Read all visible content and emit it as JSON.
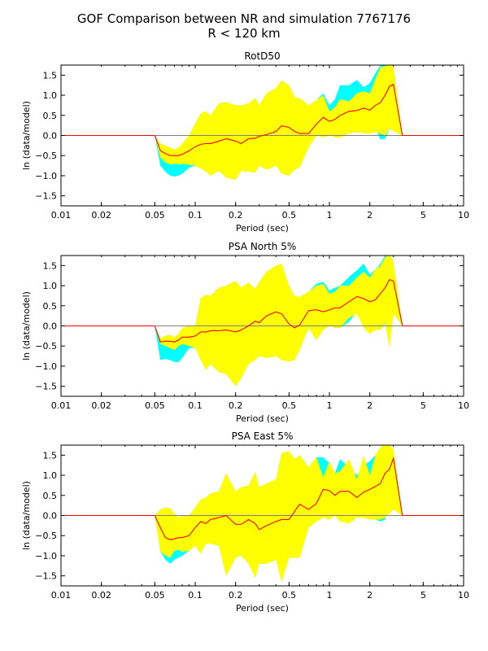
{
  "figure": {
    "title_line1": "GOF Comparison between NR and simulation 7767176",
    "title_line2": "R < 120 km"
  },
  "colors": {
    "outer_band": "#00ffff",
    "inner_band": "#ffff00",
    "mean_line": "#ff0000",
    "zero_line": "#808080"
  },
  "chart_data": [
    {
      "type": "area",
      "title": "RotD50",
      "xlabel": "Period (sec)",
      "ylabel": "ln (data/model)",
      "xscale": "log",
      "xlim": [
        0.01,
        10
      ],
      "ylim": [
        -1.75,
        1.75
      ],
      "xticks": [
        0.01,
        0.02,
        0.05,
        0.1,
        0.2,
        0.5,
        1,
        2,
        5,
        10
      ],
      "xtick_labels": [
        "0.01",
        "0.02",
        "0.05",
        "0.1",
        "0.2",
        "0.5",
        "1",
        "2",
        "5",
        "10"
      ],
      "yticks": [
        -1.5,
        -1.0,
        -0.5,
        0.0,
        0.5,
        1.0,
        1.5
      ],
      "ytick_labels": [
        "−1.5",
        "−1.0",
        "−0.5",
        "0.0",
        "0.5",
        "1.0",
        "1.5"
      ],
      "x": [
        0.05,
        0.055,
        0.06,
        0.065,
        0.07,
        0.075,
        0.08,
        0.09,
        0.1,
        0.11,
        0.12,
        0.13,
        0.15,
        0.17,
        0.2,
        0.22,
        0.25,
        0.28,
        0.3,
        0.34,
        0.4,
        0.44,
        0.5,
        0.55,
        0.6,
        0.7,
        0.8,
        0.9,
        1.0,
        1.1,
        1.2,
        1.4,
        1.6,
        1.8,
        2.0,
        2.2,
        2.4,
        2.6,
        2.8,
        3.0,
        3.5
      ],
      "mean": [
        0,
        -0.38,
        -0.45,
        -0.5,
        -0.5,
        -0.5,
        -0.47,
        -0.38,
        -0.28,
        -0.22,
        -0.2,
        -0.2,
        -0.14,
        -0.08,
        -0.14,
        -0.2,
        -0.08,
        -0.07,
        -0.02,
        0.02,
        0.1,
        0.24,
        0.2,
        0.1,
        0.05,
        0.05,
        0.28,
        0.45,
        0.35,
        0.4,
        0.5,
        0.6,
        0.62,
        0.68,
        0.63,
        0.75,
        0.82,
        1.0,
        1.22,
        1.27,
        0
      ],
      "inner_upper": [
        0,
        -0.2,
        -0.25,
        -0.3,
        -0.35,
        -0.3,
        -0.2,
        0.0,
        0.3,
        0.55,
        0.6,
        0.5,
        0.8,
        0.83,
        0.75,
        0.75,
        0.8,
        0.93,
        0.75,
        1.05,
        1.18,
        1.37,
        1.25,
        0.95,
        0.93,
        0.75,
        0.88,
        1.0,
        0.6,
        0.7,
        0.9,
        0.85,
        1.05,
        1.1,
        1.05,
        1.4,
        1.7,
        1.72,
        1.8,
        1.7,
        0
      ],
      "inner_lower": [
        0,
        -0.55,
        -0.67,
        -0.72,
        -0.7,
        -0.72,
        -0.7,
        -0.73,
        -0.75,
        -0.82,
        -0.9,
        -1.0,
        -0.88,
        -1.05,
        -1.1,
        -0.88,
        -0.9,
        -0.92,
        -0.75,
        -0.85,
        -0.75,
        -0.95,
        -1.0,
        -0.85,
        -0.8,
        -0.3,
        0.0,
        -0.05,
        0.02,
        -0.05,
        -0.05,
        0.05,
        0.08,
        0.05,
        0.05,
        0.08,
        0.05,
        0.0,
        0.18,
        0.1,
        0
      ],
      "outer_upper": [
        0,
        -0.2,
        -0.25,
        -0.3,
        -0.35,
        -0.3,
        -0.2,
        0.0,
        0.3,
        0.55,
        0.6,
        0.5,
        0.8,
        0.83,
        0.75,
        0.75,
        0.8,
        0.93,
        0.75,
        1.05,
        1.18,
        1.37,
        1.25,
        0.95,
        0.93,
        0.75,
        0.88,
        1.05,
        0.75,
        0.9,
        1.25,
        1.25,
        1.38,
        1.2,
        1.3,
        1.55,
        1.75,
        1.75,
        1.8,
        1.7,
        0
      ],
      "outer_lower": [
        0,
        -0.75,
        -0.9,
        -1.0,
        -1.02,
        -1.0,
        -0.95,
        -0.8,
        -0.75,
        -0.82,
        -0.9,
        -1.0,
        -0.88,
        -1.05,
        -1.1,
        -0.88,
        -0.9,
        -0.92,
        -0.75,
        -0.85,
        -0.75,
        -0.95,
        -1.0,
        -0.85,
        -0.8,
        -0.3,
        0.05,
        -0.05,
        0.1,
        0.18,
        0.1,
        0.2,
        0.45,
        0.28,
        0.25,
        0.2,
        -0.1,
        -0.08,
        0.18,
        0.1,
        0
      ]
    },
    {
      "type": "area",
      "title": "PSA North 5%",
      "xlabel": "Period (sec)",
      "ylabel": "ln (data/model)",
      "xscale": "log",
      "xlim": [
        0.01,
        10
      ],
      "ylim": [
        -1.75,
        1.75
      ],
      "xticks": [
        0.01,
        0.02,
        0.05,
        0.1,
        0.2,
        0.5,
        1,
        2,
        5,
        10
      ],
      "xtick_labels": [
        "0.01",
        "0.02",
        "0.05",
        "0.1",
        "0.2",
        "0.5",
        "1",
        "2",
        "5",
        "10"
      ],
      "yticks": [
        -1.5,
        -1.0,
        -0.5,
        0.0,
        0.5,
        1.0,
        1.5
      ],
      "ytick_labels": [
        "−1.5",
        "−1.0",
        "−0.5",
        "0.0",
        "0.5",
        "1.0",
        "1.5"
      ],
      "x": [
        0.05,
        0.055,
        0.06,
        0.065,
        0.07,
        0.075,
        0.08,
        0.09,
        0.1,
        0.11,
        0.12,
        0.13,
        0.15,
        0.17,
        0.2,
        0.22,
        0.25,
        0.28,
        0.3,
        0.34,
        0.4,
        0.44,
        0.5,
        0.55,
        0.6,
        0.7,
        0.8,
        0.9,
        1.0,
        1.1,
        1.2,
        1.4,
        1.6,
        1.8,
        2.0,
        2.2,
        2.4,
        2.6,
        2.8,
        3.0,
        3.5
      ],
      "mean": [
        0,
        -0.4,
        -0.38,
        -0.38,
        -0.4,
        -0.35,
        -0.28,
        -0.28,
        -0.25,
        -0.15,
        -0.15,
        -0.12,
        -0.12,
        -0.1,
        -0.15,
        -0.1,
        0.0,
        0.12,
        0.08,
        0.25,
        0.35,
        0.3,
        0.05,
        -0.05,
        0.02,
        0.38,
        0.4,
        0.35,
        0.4,
        0.45,
        0.45,
        0.6,
        0.73,
        0.68,
        0.6,
        0.65,
        0.8,
        0.95,
        1.15,
        1.12,
        0
      ],
      "inner_upper": [
        0,
        -0.3,
        -0.25,
        -0.22,
        -0.28,
        -0.2,
        -0.05,
        0.0,
        0.0,
        0.7,
        0.77,
        0.75,
        0.95,
        1.0,
        1.12,
        0.95,
        1.08,
        0.92,
        1.1,
        1.35,
        1.5,
        1.55,
        1.0,
        0.75,
        0.72,
        0.85,
        1.0,
        1.05,
        0.8,
        0.85,
        1.0,
        1.0,
        1.2,
        1.35,
        1.2,
        1.4,
        1.5,
        1.7,
        1.8,
        1.6,
        0
      ],
      "inner_lower": [
        0,
        -0.45,
        -0.5,
        -0.55,
        -0.6,
        -0.5,
        -0.45,
        -0.5,
        -0.55,
        -0.85,
        -1.1,
        -0.95,
        -1.15,
        -1.2,
        -1.5,
        -1.3,
        -0.95,
        -0.85,
        -0.75,
        -0.8,
        -0.75,
        -0.85,
        -0.88,
        -0.85,
        -0.6,
        -0.05,
        -0.35,
        -0.1,
        0.0,
        -0.05,
        -0.05,
        0.2,
        0.3,
        -0.05,
        -0.2,
        -0.1,
        -0.1,
        0.08,
        -0.55,
        0.3,
        0
      ],
      "outer_upper": [
        0,
        -0.3,
        -0.25,
        -0.22,
        -0.28,
        -0.2,
        -0.05,
        0.0,
        0.0,
        0.7,
        0.77,
        0.75,
        0.95,
        1.0,
        1.12,
        0.95,
        1.08,
        0.92,
        1.1,
        1.35,
        1.5,
        1.55,
        1.0,
        0.75,
        0.72,
        0.85,
        1.05,
        1.1,
        0.88,
        0.95,
        1.0,
        1.22,
        1.38,
        1.55,
        1.28,
        1.4,
        1.55,
        1.75,
        1.8,
        1.6,
        0
      ],
      "outer_lower": [
        0,
        -0.85,
        -0.82,
        -0.85,
        -0.9,
        -0.9,
        -0.8,
        -0.55,
        -0.55,
        -0.85,
        -1.1,
        -0.95,
        -1.15,
        -1.2,
        -1.5,
        -1.3,
        -0.95,
        -0.85,
        -0.75,
        -0.8,
        -0.75,
        -0.85,
        -0.88,
        -0.85,
        -0.6,
        -0.05,
        -0.35,
        -0.1,
        0.0,
        -0.05,
        -0.05,
        0.1,
        0.35,
        0.15,
        -0.1,
        -0.05,
        -0.1,
        0.05,
        0.0,
        0.3,
        0
      ]
    },
    {
      "type": "area",
      "title": "PSA East 5%",
      "xlabel": "Period (sec)",
      "ylabel": "ln (data/model)",
      "xscale": "log",
      "xlim": [
        0.01,
        10
      ],
      "ylim": [
        -1.75,
        1.75
      ],
      "xticks": [
        0.01,
        0.02,
        0.05,
        0.1,
        0.2,
        0.5,
        1,
        2,
        5,
        10
      ],
      "xtick_labels": [
        "0.01",
        "0.02",
        "0.05",
        "0.1",
        "0.2",
        "0.5",
        "1",
        "2",
        "5",
        "10"
      ],
      "yticks": [
        -1.5,
        -1.0,
        -0.5,
        0.0,
        0.5,
        1.0,
        1.5
      ],
      "ytick_labels": [
        "−1.5",
        "−1.0",
        "−0.5",
        "0.0",
        "0.5",
        "1.0",
        "1.5"
      ],
      "x": [
        0.05,
        0.055,
        0.06,
        0.065,
        0.07,
        0.075,
        0.08,
        0.09,
        0.1,
        0.11,
        0.12,
        0.13,
        0.15,
        0.17,
        0.2,
        0.22,
        0.25,
        0.28,
        0.3,
        0.34,
        0.4,
        0.44,
        0.5,
        0.55,
        0.6,
        0.7,
        0.8,
        0.9,
        1.0,
        1.1,
        1.2,
        1.4,
        1.6,
        1.8,
        2.0,
        2.2,
        2.4,
        2.6,
        2.8,
        3.0,
        3.5
      ],
      "mean": [
        0,
        -0.3,
        -0.55,
        -0.6,
        -0.58,
        -0.55,
        -0.55,
        -0.5,
        -0.3,
        -0.15,
        -0.2,
        -0.1,
        -0.05,
        0.0,
        -0.22,
        -0.22,
        -0.1,
        -0.2,
        -0.35,
        -0.25,
        -0.15,
        -0.1,
        -0.1,
        0.1,
        0.28,
        0.15,
        0.3,
        0.65,
        0.62,
        0.5,
        0.6,
        0.6,
        0.45,
        0.58,
        0.65,
        0.72,
        0.8,
        1.05,
        1.15,
        1.42,
        0
      ],
      "inner_upper": [
        0,
        0.15,
        0.2,
        0.18,
        0.05,
        -0.05,
        0.0,
        0.0,
        0.2,
        0.4,
        0.45,
        0.55,
        0.6,
        1.05,
        0.6,
        0.7,
        0.75,
        1.08,
        0.7,
        0.8,
        0.9,
        1.55,
        1.6,
        1.4,
        1.5,
        1.2,
        1.45,
        0.95,
        1.35,
        1.05,
        1.1,
        1.4,
        0.9,
        1.5,
        1.0,
        1.5,
        1.7,
        1.8,
        1.75,
        1.65,
        0
      ],
      "inner_lower": [
        0,
        -0.9,
        -1.0,
        -1.05,
        -0.88,
        -0.85,
        -0.9,
        -0.88,
        -0.75,
        -0.95,
        -0.7,
        -0.7,
        -0.75,
        -1.5,
        -1.05,
        -1.0,
        -1.2,
        -1.55,
        -1.2,
        -1.2,
        -1.1,
        -1.65,
        -1.05,
        -1.05,
        -1.05,
        -0.3,
        -0.15,
        -0.05,
        -0.1,
        0.0,
        -0.15,
        -0.2,
        -0.05,
        -0.05,
        -0.1,
        -0.1,
        -0.1,
        -0.05,
        0.05,
        0.15,
        0
      ],
      "outer_upper": [
        0,
        0.15,
        0.2,
        0.18,
        0.05,
        -0.05,
        0.0,
        0.0,
        0.2,
        0.4,
        0.45,
        0.55,
        0.6,
        1.05,
        0.6,
        0.7,
        0.75,
        1.08,
        0.7,
        0.8,
        0.9,
        1.55,
        1.6,
        1.4,
        1.5,
        1.2,
        1.45,
        1.45,
        1.3,
        1.05,
        1.4,
        1.2,
        1.0,
        1.25,
        1.35,
        1.5,
        1.7,
        1.8,
        1.75,
        1.65,
        0
      ],
      "outer_lower": [
        0,
        -0.9,
        -1.1,
        -1.2,
        -1.1,
        -1.05,
        -1.0,
        -0.88,
        -0.75,
        -0.95,
        -0.7,
        -0.7,
        -0.75,
        -1.5,
        -1.05,
        -1.0,
        -1.2,
        -1.55,
        -1.2,
        -1.2,
        -1.1,
        -1.65,
        -1.05,
        -1.05,
        -1.05,
        -0.3,
        -0.15,
        0.0,
        0.3,
        0.0,
        -0.15,
        -0.05,
        -0.05,
        0.05,
        0.45,
        -0.1,
        -0.15,
        -0.1,
        0.7,
        0.15,
        0
      ]
    }
  ]
}
